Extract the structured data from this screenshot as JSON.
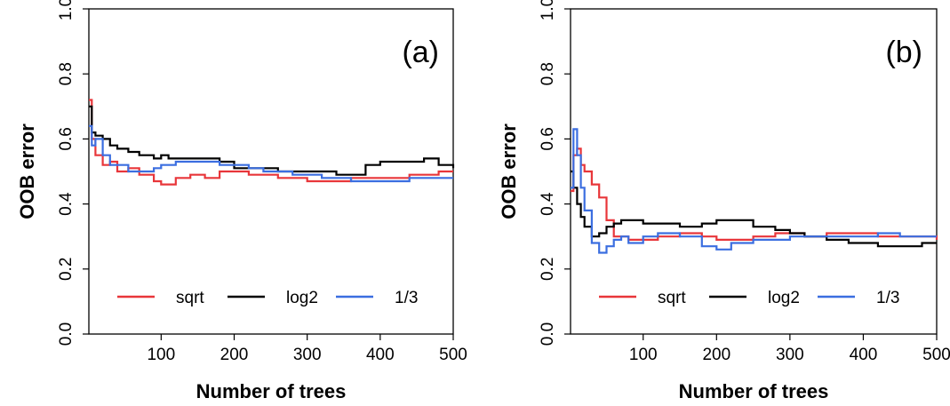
{
  "chart_data": [
    {
      "type": "line",
      "panel_label": "(a)",
      "xlabel": "Number of trees",
      "ylabel": "OOB error",
      "xlim": [
        1,
        500
      ],
      "ylim": [
        0.0,
        1.0
      ],
      "x_ticks": [
        "100",
        "200",
        "300",
        "400",
        "500"
      ],
      "y_ticks": [
        "0.0",
        "0.2",
        "0.4",
        "0.6",
        "0.8",
        "1.0"
      ],
      "legend_position": "bottom",
      "series": [
        {
          "name": "sqrt",
          "color": "#e8363a",
          "x": [
            1,
            5,
            10,
            20,
            30,
            40,
            55,
            70,
            90,
            100,
            110,
            120,
            140,
            160,
            180,
            200,
            220,
            240,
            260,
            280,
            300,
            320,
            340,
            360,
            380,
            400,
            420,
            440,
            460,
            480,
            500
          ],
          "y": [
            0.72,
            0.6,
            0.55,
            0.52,
            0.53,
            0.5,
            0.51,
            0.49,
            0.47,
            0.46,
            0.46,
            0.48,
            0.49,
            0.48,
            0.5,
            0.5,
            0.49,
            0.49,
            0.48,
            0.48,
            0.47,
            0.47,
            0.47,
            0.48,
            0.48,
            0.48,
            0.48,
            0.49,
            0.49,
            0.5,
            0.5
          ]
        },
        {
          "name": "log2",
          "color": "#000000",
          "x": [
            1,
            5,
            10,
            20,
            30,
            40,
            55,
            70,
            90,
            100,
            110,
            120,
            140,
            160,
            180,
            200,
            220,
            240,
            260,
            280,
            300,
            320,
            340,
            360,
            380,
            400,
            420,
            440,
            460,
            480,
            500
          ],
          "y": [
            0.7,
            0.62,
            0.61,
            0.6,
            0.58,
            0.57,
            0.56,
            0.55,
            0.54,
            0.55,
            0.54,
            0.54,
            0.54,
            0.54,
            0.53,
            0.51,
            0.51,
            0.51,
            0.5,
            0.5,
            0.5,
            0.5,
            0.49,
            0.49,
            0.52,
            0.53,
            0.53,
            0.53,
            0.54,
            0.52,
            0.51
          ]
        },
        {
          "name": "1/3",
          "color": "#3b6ee0",
          "x": [
            1,
            5,
            10,
            20,
            30,
            40,
            55,
            70,
            90,
            100,
            110,
            120,
            140,
            160,
            180,
            200,
            220,
            240,
            260,
            280,
            300,
            320,
            340,
            360,
            380,
            400,
            420,
            440,
            460,
            480,
            500
          ],
          "y": [
            0.64,
            0.58,
            0.6,
            0.55,
            0.52,
            0.52,
            0.5,
            0.5,
            0.51,
            0.52,
            0.52,
            0.53,
            0.53,
            0.53,
            0.52,
            0.52,
            0.51,
            0.5,
            0.5,
            0.49,
            0.49,
            0.48,
            0.48,
            0.47,
            0.47,
            0.47,
            0.47,
            0.48,
            0.48,
            0.48,
            0.48
          ]
        }
      ]
    },
    {
      "type": "line",
      "panel_label": "(b)",
      "xlabel": "Number of trees",
      "ylabel": "OOB error",
      "xlim": [
        1,
        500
      ],
      "ylim": [
        0.0,
        1.0
      ],
      "x_ticks": [
        "100",
        "200",
        "300",
        "400",
        "500"
      ],
      "y_ticks": [
        "0.0",
        "0.2",
        "0.4",
        "0.6",
        "0.8",
        "1.0"
      ],
      "legend_position": "bottom",
      "series": [
        {
          "name": "sqrt",
          "color": "#e8363a",
          "x": [
            1,
            5,
            10,
            15,
            20,
            30,
            40,
            50,
            60,
            70,
            80,
            100,
            120,
            150,
            180,
            200,
            220,
            250,
            280,
            300,
            320,
            350,
            380,
            400,
            420,
            450,
            480,
            500
          ],
          "y": [
            0.44,
            0.55,
            0.57,
            0.52,
            0.5,
            0.46,
            0.42,
            0.35,
            0.3,
            0.3,
            0.29,
            0.29,
            0.3,
            0.31,
            0.3,
            0.29,
            0.29,
            0.3,
            0.31,
            0.31,
            0.3,
            0.31,
            0.31,
            0.31,
            0.3,
            0.3,
            0.3,
            0.29
          ]
        },
        {
          "name": "log2",
          "color": "#000000",
          "x": [
            1,
            5,
            10,
            15,
            20,
            30,
            40,
            50,
            60,
            70,
            80,
            100,
            120,
            150,
            180,
            200,
            220,
            250,
            280,
            300,
            320,
            350,
            380,
            400,
            420,
            450,
            480,
            500
          ],
          "y": [
            0.5,
            0.45,
            0.4,
            0.36,
            0.33,
            0.3,
            0.31,
            0.33,
            0.34,
            0.35,
            0.35,
            0.34,
            0.34,
            0.33,
            0.34,
            0.35,
            0.35,
            0.33,
            0.32,
            0.31,
            0.3,
            0.29,
            0.28,
            0.28,
            0.27,
            0.27,
            0.28,
            0.28
          ]
        },
        {
          "name": "1/3",
          "color": "#3b6ee0",
          "x": [
            1,
            5,
            10,
            15,
            20,
            30,
            40,
            50,
            60,
            70,
            80,
            100,
            120,
            150,
            180,
            200,
            220,
            250,
            280,
            300,
            320,
            350,
            380,
            400,
            420,
            450,
            480,
            500
          ],
          "y": [
            0.45,
            0.63,
            0.55,
            0.45,
            0.38,
            0.28,
            0.25,
            0.27,
            0.29,
            0.3,
            0.28,
            0.3,
            0.31,
            0.3,
            0.27,
            0.26,
            0.28,
            0.29,
            0.29,
            0.3,
            0.3,
            0.3,
            0.3,
            0.3,
            0.31,
            0.3,
            0.3,
            0.3
          ]
        }
      ]
    }
  ]
}
